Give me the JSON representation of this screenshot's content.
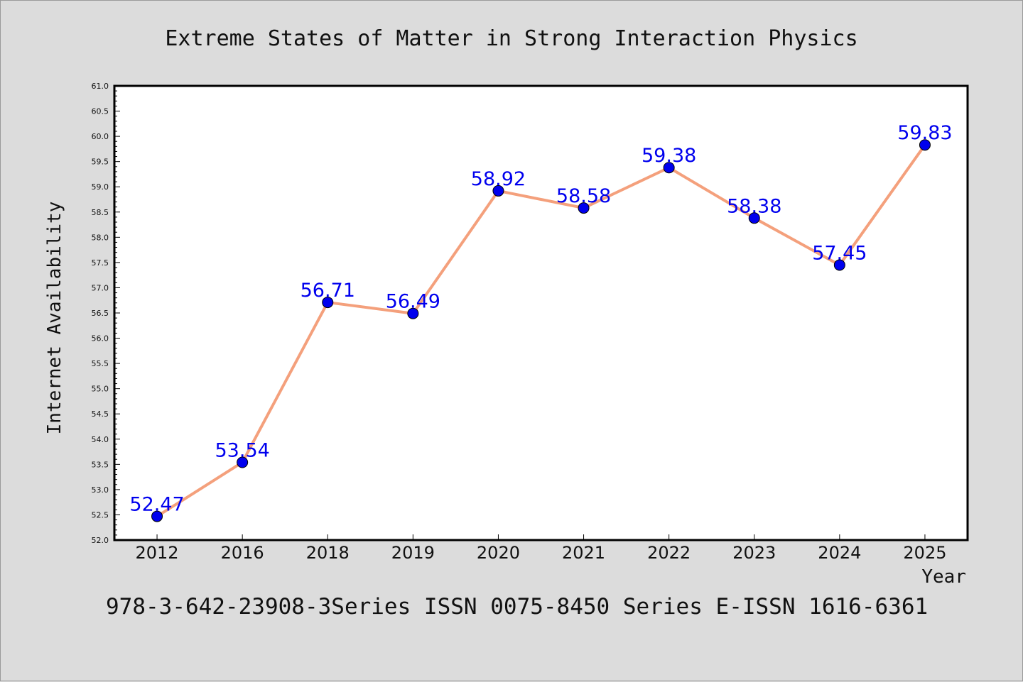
{
  "chart_data": {
    "type": "line",
    "title": "Extreme States of Matter in Strong Interaction Physics",
    "xlabel": "Year",
    "ylabel": "Internet Availability",
    "categories": [
      "2012",
      "2016",
      "2018",
      "2019",
      "2020",
      "2021",
      "2022",
      "2023",
      "2024",
      "2025"
    ],
    "series": [
      {
        "values": [
          52.47,
          53.54,
          56.71,
          56.49,
          58.92,
          58.58,
          59.38,
          58.38,
          57.45,
          59.83
        ],
        "labels": [
          "52.47",
          "53.54",
          "56.71",
          "56.49",
          "58.92",
          "58.58",
          "59.38",
          "58.38",
          "57.45",
          "59.83"
        ]
      }
    ],
    "ylim": [
      52.0,
      61.0
    ],
    "yticks": [
      "52.0",
      "52.5",
      "53.0",
      "53.5",
      "54.0",
      "54.5",
      "55.0",
      "55.5",
      "56.0",
      "56.5",
      "57.0",
      "57.5",
      "58.0",
      "58.5",
      "59.0",
      "59.5",
      "60.0",
      "60.5",
      "61.0"
    ],
    "grid": false,
    "legend": "none",
    "colors": {
      "line": "#f4a07c",
      "marker": "#0000ee",
      "label": "#0000ee",
      "background": "#dcdcdc",
      "plot_area": "#ffffff"
    }
  },
  "footer": "978-3-642-23908-3Series ISSN 0075-8450 Series E-ISSN 1616-6361"
}
